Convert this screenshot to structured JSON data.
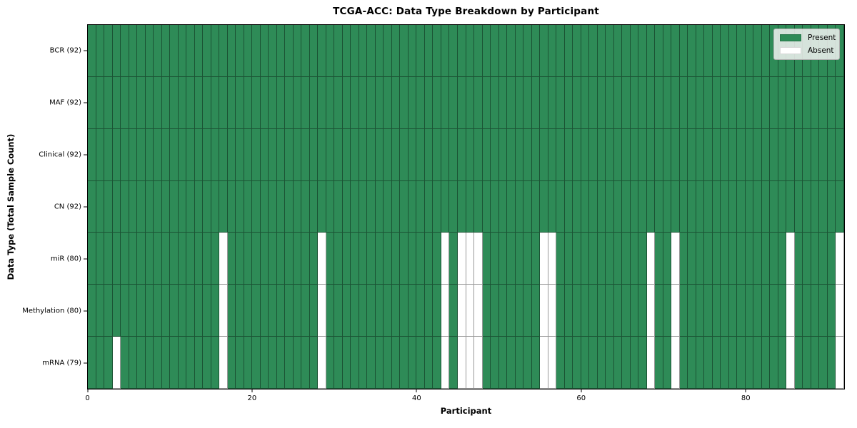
{
  "chart_data": {
    "type": "heatmap",
    "title": "TCGA-ACC: Data Type Breakdown by Participant",
    "xlabel": "Participant",
    "ylabel": "Data Type (Total Sample Count)",
    "n_participants": 92,
    "x_ticks": [
      0,
      20,
      40,
      60,
      80
    ],
    "x_range": [
      0,
      92
    ],
    "grid": "cell-edges",
    "rows": [
      {
        "label": "BCR (92)",
        "data_type": "BCR",
        "present_count": 92,
        "absent_participants": []
      },
      {
        "label": "MAF (92)",
        "data_type": "MAF",
        "present_count": 92,
        "absent_participants": []
      },
      {
        "label": "Clinical (92)",
        "data_type": "Clinical",
        "present_count": 92,
        "absent_participants": []
      },
      {
        "label": "CN (92)",
        "data_type": "CN",
        "present_count": 92,
        "absent_participants": []
      },
      {
        "label": "miR (80)",
        "data_type": "miR",
        "present_count": 80,
        "absent_participants": [
          16,
          28,
          43,
          45,
          46,
          47,
          55,
          56,
          68,
          71,
          85,
          91
        ]
      },
      {
        "label": "Methylation (80)",
        "data_type": "Methylation",
        "present_count": 80,
        "absent_participants": [
          16,
          28,
          43,
          45,
          46,
          47,
          55,
          56,
          68,
          71,
          85,
          91
        ]
      },
      {
        "label": "mRNA (79)",
        "data_type": "mRNA",
        "present_count": 79,
        "absent_participants": [
          3,
          16,
          28,
          43,
          45,
          46,
          47,
          55,
          56,
          68,
          71,
          85,
          91
        ]
      }
    ],
    "legend": {
      "position": "upper-right",
      "entries": [
        {
          "label": "Present",
          "color": "#2e8b57"
        },
        {
          "label": "Absent",
          "color": "#ffffff"
        }
      ]
    },
    "colors": {
      "present": "#2e8b57",
      "absent": "#ffffff",
      "axis": "#000000"
    }
  }
}
